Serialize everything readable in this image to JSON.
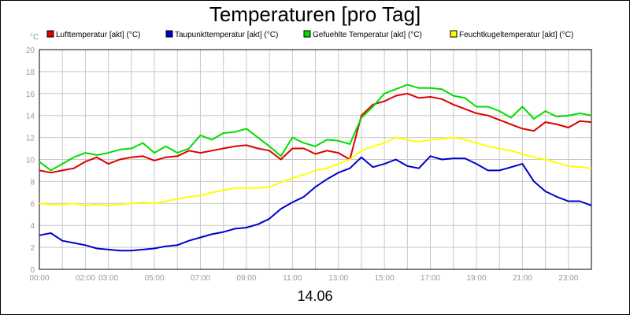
{
  "chart_data": {
    "type": "line",
    "title": "Temperaturen [pro Tag]",
    "ylabel": "°C",
    "xlabel": "14.06",
    "ylim": [
      0,
      20
    ],
    "xlim": [
      0,
      24
    ],
    "y_ticks": [
      0,
      2,
      4,
      6,
      8,
      10,
      12,
      14,
      16,
      18,
      20
    ],
    "x_ticks": [
      {
        "v": 0,
        "label": "00:00"
      },
      {
        "v": 2,
        "label": "02:00"
      },
      {
        "v": 3,
        "label": "03:00"
      },
      {
        "v": 5,
        "label": "05:00"
      },
      {
        "v": 7,
        "label": "07:00"
      },
      {
        "v": 9,
        "label": "09:00"
      },
      {
        "v": 11,
        "label": "11:00"
      },
      {
        "v": 13,
        "label": "13:00"
      },
      {
        "v": 15,
        "label": "15:00"
      },
      {
        "v": 17,
        "label": "17:00"
      },
      {
        "v": 19,
        "label": "19:00"
      },
      {
        "v": 21,
        "label": "21:00"
      },
      {
        "v": 23,
        "label": "23:00"
      }
    ],
    "grid": true,
    "legend_position": "top",
    "x": [
      0,
      0.5,
      1,
      1.5,
      2,
      2.5,
      3,
      3.5,
      4,
      4.5,
      5,
      5.5,
      6,
      6.5,
      7,
      7.5,
      8,
      8.5,
      9,
      9.5,
      10,
      10.5,
      11,
      11.5,
      12,
      12.5,
      13,
      13.5,
      14,
      14.5,
      15,
      15.5,
      16,
      16.5,
      17,
      17.5,
      18,
      18.5,
      19,
      19.5,
      20,
      20.5,
      21,
      21.5,
      22,
      22.5,
      23,
      23.5,
      24
    ],
    "series": [
      {
        "name": "Lufttemperatur [akt] (°C)",
        "color": "#dd0000",
        "values": [
          9.0,
          8.8,
          9.0,
          9.2,
          9.8,
          10.2,
          9.6,
          10.0,
          10.2,
          10.3,
          9.9,
          10.2,
          10.3,
          10.8,
          10.6,
          10.8,
          11.0,
          11.2,
          11.3,
          11.0,
          10.8,
          10.0,
          11.0,
          11.0,
          10.5,
          10.8,
          10.6,
          10.0,
          14.0,
          15.0,
          15.3,
          15.8,
          16.0,
          15.6,
          15.7,
          15.5,
          15.0,
          14.6,
          14.2,
          14.0,
          13.6,
          13.2,
          12.8,
          12.6,
          13.4,
          13.2,
          12.9,
          13.5,
          13.4
        ]
      },
      {
        "name": "Taupunkttemperatur [akt] (°C)",
        "color": "#0000cc",
        "values": [
          3.1,
          3.3,
          2.6,
          2.4,
          2.2,
          1.9,
          1.8,
          1.7,
          1.7,
          1.8,
          1.9,
          2.1,
          2.2,
          2.6,
          2.9,
          3.2,
          3.4,
          3.7,
          3.8,
          4.1,
          4.6,
          5.5,
          6.1,
          6.6,
          7.5,
          8.2,
          8.8,
          9.2,
          10.2,
          9.3,
          9.6,
          10.0,
          9.4,
          9.2,
          10.3,
          10.0,
          10.1,
          10.1,
          9.6,
          9.0,
          9.0,
          9.3,
          9.6,
          8.0,
          7.1,
          6.6,
          6.2,
          6.2,
          5.8
        ]
      },
      {
        "name": "Gefuehlte Temperatur [akt] (°C)",
        "color": "#00dd00",
        "values": [
          9.8,
          9.0,
          9.6,
          10.2,
          10.6,
          10.4,
          10.6,
          10.9,
          11.0,
          11.5,
          10.6,
          11.2,
          10.6,
          11.0,
          12.2,
          11.8,
          12.4,
          12.5,
          12.8,
          12.0,
          11.2,
          10.3,
          12.0,
          11.5,
          11.2,
          11.8,
          11.7,
          11.4,
          13.8,
          14.8,
          16.0,
          16.4,
          16.8,
          16.5,
          16.5,
          16.4,
          15.8,
          15.6,
          14.8,
          14.8,
          14.4,
          13.8,
          14.8,
          13.7,
          14.4,
          13.9,
          14.0,
          14.2,
          14.0
        ]
      },
      {
        "name": "Feuchtkugeltemperatur [akt] (°C)",
        "color": "#ffff00",
        "values": [
          6.0,
          5.9,
          5.9,
          6.0,
          5.8,
          5.9,
          5.8,
          5.9,
          6.0,
          6.1,
          6.0,
          6.2,
          6.4,
          6.6,
          6.7,
          7.0,
          7.2,
          7.4,
          7.4,
          7.4,
          7.5,
          7.9,
          8.3,
          8.6,
          9.0,
          9.2,
          9.6,
          10.0,
          10.8,
          11.2,
          11.5,
          12.0,
          11.8,
          11.6,
          11.8,
          11.9,
          12.0,
          11.8,
          11.5,
          11.2,
          11.0,
          10.8,
          10.5,
          10.2,
          10.0,
          9.7,
          9.4,
          9.3,
          9.2
        ]
      }
    ]
  }
}
